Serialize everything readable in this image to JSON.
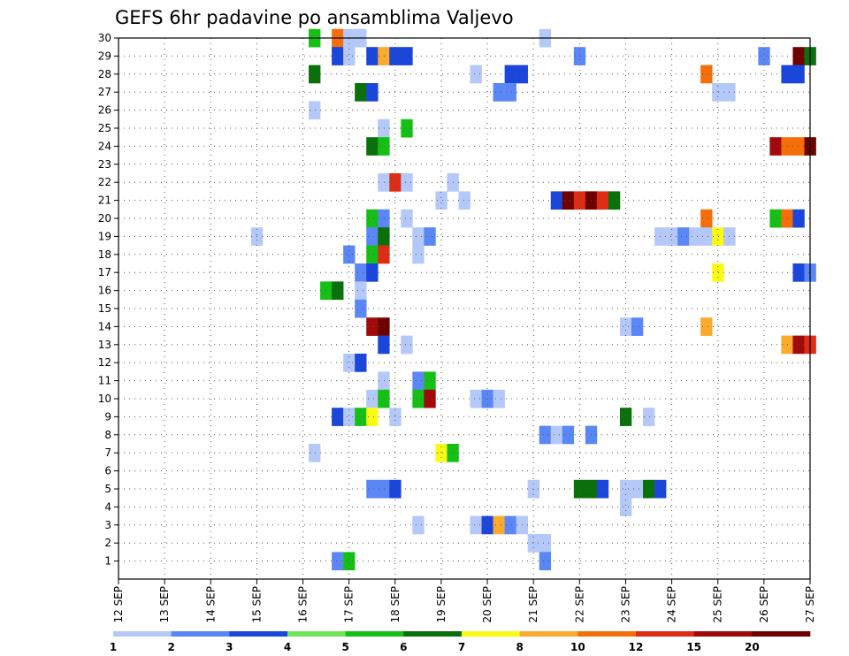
{
  "chart_data": {
    "type": "heatmap",
    "title": "GEFS 6hr padavine po ansamblima Valjevo",
    "xlabel": "",
    "ylabel": "",
    "x_tick_labels": [
      "12 SEP",
      "13 SEP",
      "14 SEP",
      "15 SEP",
      "16 SEP",
      "17 SEP",
      "18 SEP",
      "19 SEP",
      "20 SEP",
      "21 SEP",
      "22 SEP",
      "23 SEP",
      "24 SEP",
      "25 SEP",
      "26 SEP",
      "27 SEP"
    ],
    "x_range_days": [
      0,
      15
    ],
    "y_tick_labels": [
      "1",
      "2",
      "3",
      "4",
      "5",
      "6",
      "7",
      "8",
      "9",
      "10",
      "11",
      "12",
      "13",
      "14",
      "15",
      "16",
      "17",
      "18",
      "19",
      "20",
      "21",
      "22",
      "23",
      "24",
      "25",
      "26",
      "27",
      "28",
      "29",
      "30"
    ],
    "y_range": [
      0,
      30
    ],
    "grid": true,
    "grid_style": "dotted",
    "time_step_hours": 6,
    "legend": {
      "placement": "bottom",
      "labels": [
        "1",
        "2",
        "3",
        "4",
        "5",
        "6",
        "7",
        "8",
        "10",
        "12",
        "15",
        "20"
      ],
      "colors": [
        "#b4c8fa",
        "#5a87f5",
        "#1a46dc",
        "#6ee65a",
        "#16bf16",
        "#0a700a",
        "#fafa14",
        "#faaa2d",
        "#f56e0a",
        "#de2d14",
        "#a00a0a",
        "#6e0000"
      ]
    },
    "cells": [
      {
        "day": 4.25,
        "member": 30,
        "level": 5
      },
      {
        "day": 4.75,
        "member": 30,
        "level": 10
      },
      {
        "day": 5,
        "member": 30,
        "level": 1
      },
      {
        "day": 5.25,
        "member": 30,
        "level": 1
      },
      {
        "day": 9.25,
        "member": 30,
        "level": 1
      },
      {
        "day": 4.75,
        "member": 29,
        "level": 3
      },
      {
        "day": 5,
        "member": 29,
        "level": 1
      },
      {
        "day": 5.5,
        "member": 29,
        "level": 3
      },
      {
        "day": 5.75,
        "member": 29,
        "level": 8
      },
      {
        "day": 6,
        "member": 29,
        "level": 3
      },
      {
        "day": 6.25,
        "member": 29,
        "level": 3
      },
      {
        "day": 10,
        "member": 29,
        "level": 2
      },
      {
        "day": 14,
        "member": 29,
        "level": 2
      },
      {
        "day": 14.75,
        "member": 29,
        "level": 20
      },
      {
        "day": 15,
        "member": 29,
        "level": 6
      },
      {
        "day": 4.25,
        "member": 28,
        "level": 6
      },
      {
        "day": 7.75,
        "member": 28,
        "level": 1
      },
      {
        "day": 8.5,
        "member": 28,
        "level": 3
      },
      {
        "day": 8.75,
        "member": 28,
        "level": 3
      },
      {
        "day": 12.75,
        "member": 28,
        "level": 10
      },
      {
        "day": 14.5,
        "member": 28,
        "level": 3
      },
      {
        "day": 14.75,
        "member": 28,
        "level": 3
      },
      {
        "day": 5.25,
        "member": 27,
        "level": 6
      },
      {
        "day": 5.5,
        "member": 27,
        "level": 3
      },
      {
        "day": 8.25,
        "member": 27,
        "level": 2
      },
      {
        "day": 8.5,
        "member": 27,
        "level": 2
      },
      {
        "day": 13,
        "member": 27,
        "level": 1
      },
      {
        "day": 13.25,
        "member": 27,
        "level": 1
      },
      {
        "day": 4.25,
        "member": 26,
        "level": 1
      },
      {
        "day": 5.75,
        "member": 25,
        "level": 1
      },
      {
        "day": 6.25,
        "member": 25,
        "level": 5
      },
      {
        "day": 5.5,
        "member": 24,
        "level": 6
      },
      {
        "day": 5.75,
        "member": 24,
        "level": 5
      },
      {
        "day": 14.25,
        "member": 24,
        "level": 15
      },
      {
        "day": 14.5,
        "member": 24,
        "level": 10
      },
      {
        "day": 14.75,
        "member": 24,
        "level": 10
      },
      {
        "day": 15,
        "member": 24,
        "level": 20
      },
      {
        "day": 5.75,
        "member": 22,
        "level": 1
      },
      {
        "day": 6,
        "member": 22,
        "level": 12
      },
      {
        "day": 6.25,
        "member": 22,
        "level": 1
      },
      {
        "day": 7.25,
        "member": 22,
        "level": 1
      },
      {
        "day": 7,
        "member": 21,
        "level": 1
      },
      {
        "day": 7.5,
        "member": 21,
        "level": 1
      },
      {
        "day": 9.5,
        "member": 21,
        "level": 3
      },
      {
        "day": 9.75,
        "member": 21,
        "level": 20
      },
      {
        "day": 10,
        "member": 21,
        "level": 12
      },
      {
        "day": 10.25,
        "member": 21,
        "level": 20
      },
      {
        "day": 10.5,
        "member": 21,
        "level": 12
      },
      {
        "day": 10.75,
        "member": 21,
        "level": 6
      },
      {
        "day": 5.5,
        "member": 20,
        "level": 5
      },
      {
        "day": 5.75,
        "member": 20,
        "level": 2
      },
      {
        "day": 6.25,
        "member": 20,
        "level": 1
      },
      {
        "day": 12.75,
        "member": 20,
        "level": 10
      },
      {
        "day": 14.25,
        "member": 20,
        "level": 5
      },
      {
        "day": 14.5,
        "member": 20,
        "level": 10
      },
      {
        "day": 14.75,
        "member": 20,
        "level": 3
      },
      {
        "day": 3,
        "member": 19,
        "level": 1
      },
      {
        "day": 5.5,
        "member": 19,
        "level": 2
      },
      {
        "day": 5.75,
        "member": 19,
        "level": 6
      },
      {
        "day": 6.5,
        "member": 19,
        "level": 1
      },
      {
        "day": 6.75,
        "member": 19,
        "level": 2
      },
      {
        "day": 11.75,
        "member": 19,
        "level": 1
      },
      {
        "day": 12,
        "member": 19,
        "level": 1
      },
      {
        "day": 12.25,
        "member": 19,
        "level": 2
      },
      {
        "day": 12.5,
        "member": 19,
        "level": 1
      },
      {
        "day": 12.75,
        "member": 19,
        "level": 1
      },
      {
        "day": 13,
        "member": 19,
        "level": 7
      },
      {
        "day": 13.25,
        "member": 19,
        "level": 1
      },
      {
        "day": 5,
        "member": 18,
        "level": 2
      },
      {
        "day": 5.5,
        "member": 18,
        "level": 5
      },
      {
        "day": 5.75,
        "member": 18,
        "level": 12
      },
      {
        "day": 6.5,
        "member": 18,
        "level": 1
      },
      {
        "day": 5.25,
        "member": 17,
        "level": 2
      },
      {
        "day": 5.5,
        "member": 17,
        "level": 3
      },
      {
        "day": 13,
        "member": 17,
        "level": 7
      },
      {
        "day": 14.75,
        "member": 17,
        "level": 3
      },
      {
        "day": 15,
        "member": 17,
        "level": 2
      },
      {
        "day": 4.5,
        "member": 16,
        "level": 5
      },
      {
        "day": 4.75,
        "member": 16,
        "level": 6
      },
      {
        "day": 5.25,
        "member": 16,
        "level": 1
      },
      {
        "day": 5.25,
        "member": 15,
        "level": 2
      },
      {
        "day": 5.5,
        "member": 14,
        "level": 15
      },
      {
        "day": 5.75,
        "member": 14,
        "level": 20
      },
      {
        "day": 11,
        "member": 14,
        "level": 1
      },
      {
        "day": 11.25,
        "member": 14,
        "level": 2
      },
      {
        "day": 12.75,
        "member": 14,
        "level": 8
      },
      {
        "day": 5.75,
        "member": 13,
        "level": 3
      },
      {
        "day": 6.25,
        "member": 13,
        "level": 1
      },
      {
        "day": 14.5,
        "member": 13,
        "level": 8
      },
      {
        "day": 14.75,
        "member": 13,
        "level": 15
      },
      {
        "day": 15,
        "member": 13,
        "level": 12
      },
      {
        "day": 5,
        "member": 12,
        "level": 1
      },
      {
        "day": 5.25,
        "member": 12,
        "level": 3
      },
      {
        "day": 5.75,
        "member": 11,
        "level": 1
      },
      {
        "day": 6.5,
        "member": 11,
        "level": 2
      },
      {
        "day": 6.75,
        "member": 11,
        "level": 5
      },
      {
        "day": 5.5,
        "member": 10,
        "level": 1
      },
      {
        "day": 5.75,
        "member": 10,
        "level": 5
      },
      {
        "day": 6.5,
        "member": 10,
        "level": 5
      },
      {
        "day": 6.75,
        "member": 10,
        "level": 15
      },
      {
        "day": 7.75,
        "member": 10,
        "level": 1
      },
      {
        "day": 8,
        "member": 10,
        "level": 2
      },
      {
        "day": 8.25,
        "member": 10,
        "level": 1
      },
      {
        "day": 4.75,
        "member": 9,
        "level": 3
      },
      {
        "day": 5,
        "member": 9,
        "level": 1
      },
      {
        "day": 5.25,
        "member": 9,
        "level": 5
      },
      {
        "day": 5.5,
        "member": 9,
        "level": 7
      },
      {
        "day": 6,
        "member": 9,
        "level": 1
      },
      {
        "day": 11,
        "member": 9,
        "level": 6
      },
      {
        "day": 11.5,
        "member": 9,
        "level": 1
      },
      {
        "day": 9.25,
        "member": 8,
        "level": 2
      },
      {
        "day": 9.5,
        "member": 8,
        "level": 1
      },
      {
        "day": 9.75,
        "member": 8,
        "level": 2
      },
      {
        "day": 10.25,
        "member": 8,
        "level": 2
      },
      {
        "day": 4.25,
        "member": 7,
        "level": 1
      },
      {
        "day": 7,
        "member": 7,
        "level": 7
      },
      {
        "day": 7.25,
        "member": 7,
        "level": 5
      },
      {
        "day": 5.5,
        "member": 5,
        "level": 2
      },
      {
        "day": 5.75,
        "member": 5,
        "level": 2
      },
      {
        "day": 6,
        "member": 5,
        "level": 3
      },
      {
        "day": 9,
        "member": 5,
        "level": 1
      },
      {
        "day": 10,
        "member": 5,
        "level": 6
      },
      {
        "day": 10.25,
        "member": 5,
        "level": 6
      },
      {
        "day": 10.5,
        "member": 5,
        "level": 3
      },
      {
        "day": 11,
        "member": 5,
        "level": 1
      },
      {
        "day": 11.25,
        "member": 5,
        "level": 1
      },
      {
        "day": 11.5,
        "member": 5,
        "level": 6
      },
      {
        "day": 11.75,
        "member": 5,
        "level": 3
      },
      {
        "day": 11,
        "member": 4,
        "level": 1
      },
      {
        "day": 6.5,
        "member": 3,
        "level": 1
      },
      {
        "day": 7.75,
        "member": 3,
        "level": 1
      },
      {
        "day": 8,
        "member": 3,
        "level": 3
      },
      {
        "day": 8.25,
        "member": 3,
        "level": 8
      },
      {
        "day": 8.5,
        "member": 3,
        "level": 2
      },
      {
        "day": 8.75,
        "member": 3,
        "level": 1
      },
      {
        "day": 9,
        "member": 2,
        "level": 1
      },
      {
        "day": 9.25,
        "member": 2,
        "level": 1
      },
      {
        "day": 4.75,
        "member": 1,
        "level": 2
      },
      {
        "day": 5,
        "member": 1,
        "level": 5
      },
      {
        "day": 9.25,
        "member": 1,
        "level": 2
      }
    ]
  }
}
